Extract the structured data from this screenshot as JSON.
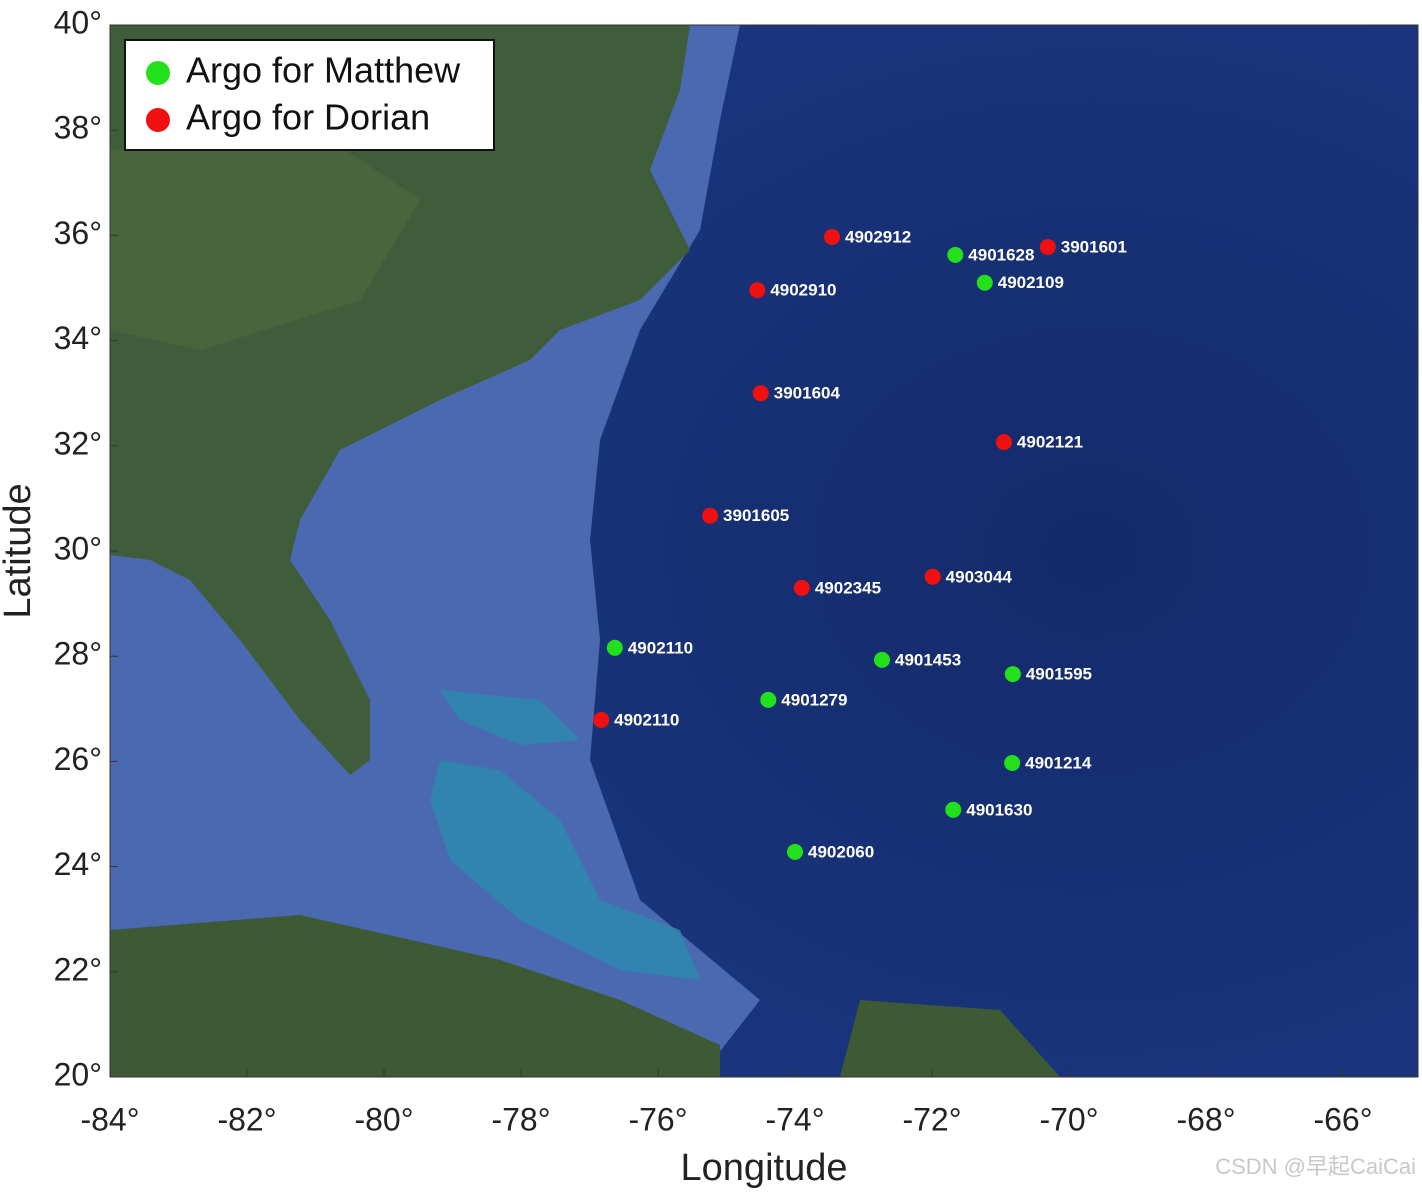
{
  "chart_data": {
    "type": "scatter",
    "xlabel": "Longitude",
    "ylabel": "Latitude",
    "xlim": [
      -84,
      -64.9
    ],
    "ylim": [
      20,
      40
    ],
    "xticks": [
      {
        "value": -84,
        "label": "-84°"
      },
      {
        "value": -82,
        "label": "-82°"
      },
      {
        "value": -80,
        "label": "-80°"
      },
      {
        "value": -78,
        "label": "-78°"
      },
      {
        "value": -76,
        "label": "-76°"
      },
      {
        "value": -74,
        "label": "-74°"
      },
      {
        "value": -72,
        "label": "-72°"
      },
      {
        "value": -70,
        "label": "-70°"
      },
      {
        "value": -68,
        "label": "-68°"
      },
      {
        "value": -66,
        "label": "-66°"
      }
    ],
    "yticks": [
      {
        "value": 20,
        "label": "20°"
      },
      {
        "value": 22,
        "label": "22°"
      },
      {
        "value": 24,
        "label": "24°"
      },
      {
        "value": 26,
        "label": "26°"
      },
      {
        "value": 28,
        "label": "28°"
      },
      {
        "value": 30,
        "label": "30°"
      },
      {
        "value": 32,
        "label": "32°"
      },
      {
        "value": 34,
        "label": "34°"
      },
      {
        "value": 36,
        "label": "36°"
      },
      {
        "value": 38,
        "label": "38°"
      },
      {
        "value": 40,
        "label": "40°"
      }
    ],
    "legend": "upper left",
    "series": [
      {
        "name": "Argo for Matthew",
        "color": "#22e01a",
        "x": [
          -71.66,
          -71.23,
          -76.63,
          -72.73,
          -70.82,
          -74.39,
          -70.83,
          -71.69,
          -74.0
        ],
        "values": [
          35.63,
          35.1,
          28.16,
          27.93,
          27.66,
          27.17,
          25.97,
          25.08,
          24.28
        ],
        "labels": [
          "4901628",
          "4902109",
          "4902110",
          "4901453",
          "4901595",
          "4901279",
          "4901214",
          "4901630",
          "4902060"
        ]
      },
      {
        "name": "Argo for Dorian",
        "color": "#f01010",
        "x": [
          -73.46,
          -70.31,
          -74.55,
          -74.5,
          -70.95,
          -75.24,
          -71.99,
          -73.9,
          -76.83
        ],
        "values": [
          35.97,
          35.78,
          34.96,
          33.0,
          32.07,
          30.67,
          29.51,
          29.3,
          26.79
        ],
        "labels": [
          "4902912",
          "3901601",
          "4902910",
          "3901604",
          "4902121",
          "3901605",
          "4903044",
          "4902345",
          "4902110"
        ]
      }
    ],
    "watermark": "CSDN @早起CaiCai"
  }
}
